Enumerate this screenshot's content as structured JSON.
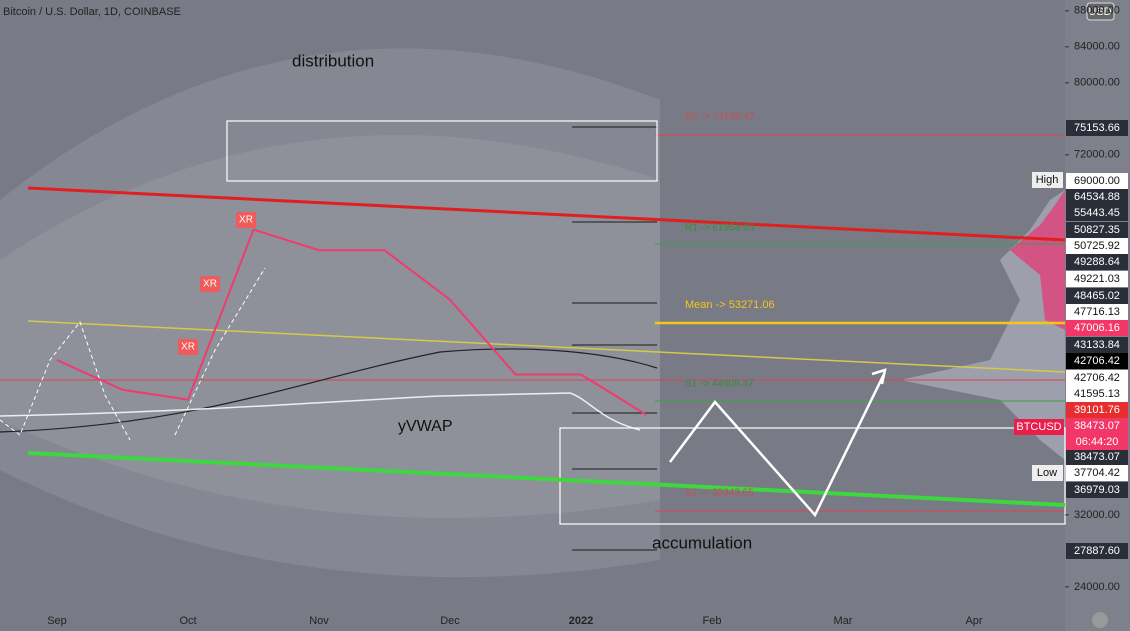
{
  "chart_data": {
    "type": "line",
    "title": "Bitcoin / U.S. Dollar, 1D, COINBASE",
    "currency": "USD",
    "categories": [
      "Sep",
      null,
      "Oct",
      null,
      "Nov",
      null,
      "Dec",
      null,
      "2022",
      null,
      "Feb",
      null,
      "Mar",
      null,
      "Apr",
      null
    ],
    "series": [
      {
        "name": "BTCUSD",
        "color": "#ef3b6e",
        "values": [
          49200,
          45900,
          44800,
          63700,
          61400,
          61400,
          55900,
          47600,
          47600,
          43100,
          null,
          null,
          null,
          null,
          null,
          null
        ]
      }
    ],
    "ylim": [
      19100,
      89200
    ],
    "yticks": [
      {
        "value": 88000,
        "label": "88000.00"
      },
      {
        "value": 84000,
        "label": "84000.00"
      },
      {
        "value": 80000,
        "label": "80000.00"
      },
      {
        "value": 72000,
        "label": "72000.00"
      },
      {
        "value": 32000,
        "label": "32000.00"
      },
      {
        "value": 24000,
        "label": "24000.00"
      }
    ],
    "annotations": {
      "distribution": "distribution",
      "accumulation": "accumulation",
      "vwap": "yVWAP",
      "xr": [
        "XR",
        "XR",
        "XR"
      ],
      "high": "High",
      "low": "Low",
      "symbol": "BTCUSD",
      "countdown": "06:44:20"
    },
    "pivots": [
      "R2 -> 74108.47",
      "R1 -> 61958.03",
      "Mean -> 53271.06",
      "S1 -> 44605.47",
      "S2 -> 32343.65"
    ],
    "price_labels": [
      "75153.66",
      "69000.00",
      "64534.88",
      "55443.45",
      "50827.35",
      "50725.92",
      "49288.64",
      "49221.03",
      "48465.02",
      "47716.13",
      "47006.16",
      "43133.84",
      "42706.42",
      "42706.42",
      "41595.13",
      "39101.76",
      "38473.07",
      "38473.07",
      "37704.42",
      "36979.03",
      "27887.60"
    ]
  }
}
